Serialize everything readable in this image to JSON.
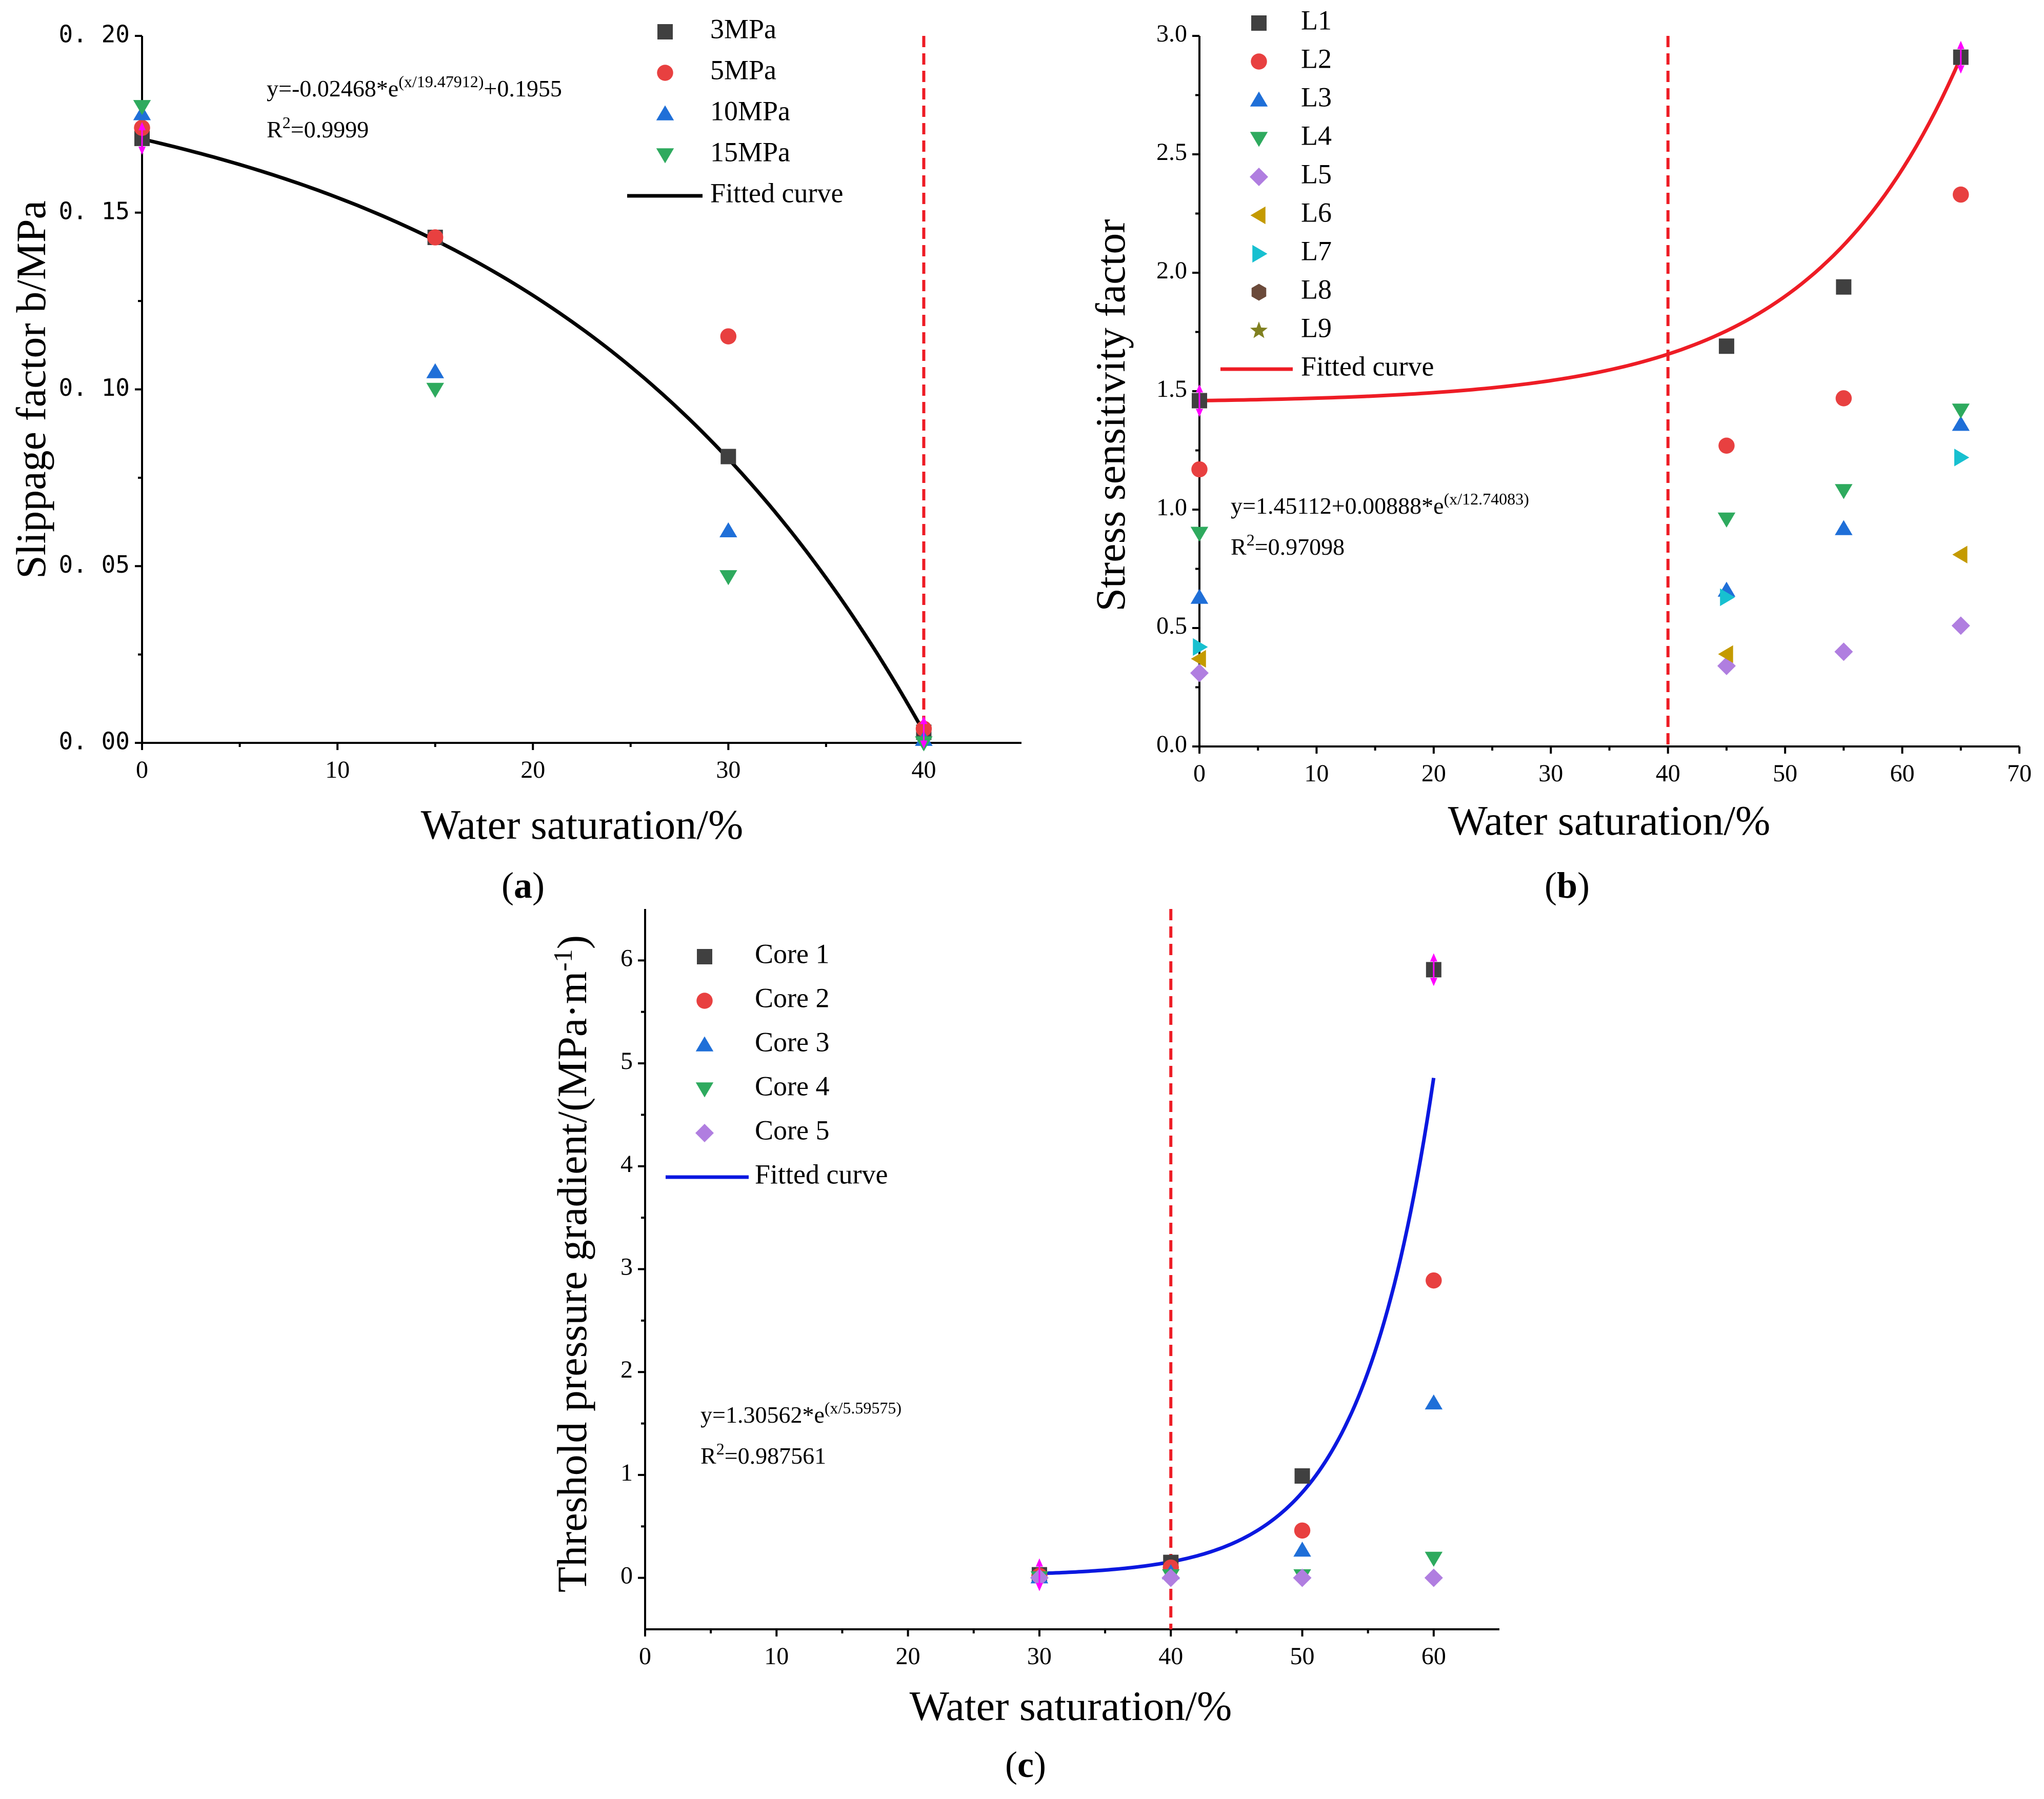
{
  "chart_data": [
    {
      "id": "a",
      "type": "scatter",
      "panel_label": "a",
      "xlabel": "Water saturation/%",
      "ylabel": "Slippage factor b/MPa",
      "xlim": [
        0,
        45
      ],
      "ylim": [
        0,
        0.2
      ],
      "xticks": [
        "0",
        "10",
        "20",
        "30",
        "40"
      ],
      "yticks": [
        "0. 00",
        "0. 05",
        "0. 10",
        "0. 15",
        "0. 20"
      ],
      "vline_x": 40,
      "series": [
        {
          "name": "3MPa",
          "marker": "square",
          "color": "#404040",
          "points": [
            [
              0,
              0.171
            ],
            [
              15,
              0.143
            ],
            [
              30,
              0.081
            ],
            [
              40,
              0.003
            ]
          ]
        },
        {
          "name": "5MPa",
          "marker": "circle",
          "color": "#e84040",
          "points": [
            [
              0,
              0.174
            ],
            [
              15,
              0.143
            ],
            [
              30,
              0.115
            ],
            [
              40,
              0.004
            ]
          ]
        },
        {
          "name": "10MPa",
          "marker": "triangle-up",
          "color": "#1f6fd8",
          "points": [
            [
              0,
              0.178
            ],
            [
              15,
              0.105
            ],
            [
              30,
              0.06
            ],
            [
              40,
              0.001
            ]
          ]
        },
        {
          "name": "15MPa",
          "marker": "triangle-down",
          "color": "#2eaa5e",
          "points": [
            [
              0,
              0.18
            ],
            [
              15,
              0.1
            ],
            [
              30,
              0.047
            ],
            [
              40,
              0.0
            ]
          ]
        }
      ],
      "fit": {
        "name": "Fitted curve",
        "color": "#000000",
        "model": "a_plus_b_exp",
        "a": 0.1955,
        "b": -0.02468,
        "t": 19.47912,
        "xrange": [
          0,
          40
        ]
      },
      "equation_prefix": "y=-0.02468*e",
      "equation_exp": "(x/19.47912)",
      "equation_suffix": "+0.1955",
      "r2_prefix": "R",
      "r2_sup": "2",
      "r2_value": "=0.9999"
    },
    {
      "id": "b",
      "type": "scatter",
      "panel_label": "b",
      "xlabel": "Water saturation/%",
      "ylabel": "Stress sensitivity factor",
      "xlim": [
        0,
        70
      ],
      "ylim": [
        0,
        3.0
      ],
      "xticks": [
        "0",
        "10",
        "20",
        "30",
        "40",
        "50",
        "60",
        "70"
      ],
      "yticks": [
        "0.0",
        "0.5",
        "1.0",
        "1.5",
        "2.0",
        "2.5",
        "3.0"
      ],
      "vline_x": 40,
      "series": [
        {
          "name": "L1",
          "marker": "square",
          "color": "#404040",
          "points": [
            [
              0,
              1.46
            ],
            [
              45,
              1.69
            ],
            [
              55,
              1.94
            ],
            [
              65,
              2.91
            ]
          ]
        },
        {
          "name": "L2",
          "marker": "circle",
          "color": "#e84040",
          "points": [
            [
              0,
              1.17
            ],
            [
              45,
              1.27
            ],
            [
              55,
              1.47
            ],
            [
              65,
              2.33
            ]
          ]
        },
        {
          "name": "L3",
          "marker": "triangle-up",
          "color": "#1f6fd8",
          "points": [
            [
              0,
              0.63
            ],
            [
              45,
              0.66
            ],
            [
              55,
              0.92
            ],
            [
              65,
              1.36
            ]
          ]
        },
        {
          "name": "L4",
          "marker": "triangle-down",
          "color": "#2eaa5e",
          "points": [
            [
              0,
              0.9
            ],
            [
              45,
              0.96
            ],
            [
              55,
              1.08
            ],
            [
              65,
              1.42
            ]
          ]
        },
        {
          "name": "L5",
          "marker": "diamond",
          "color": "#b07ee0",
          "points": [
            [
              0,
              0.31
            ],
            [
              45,
              0.34
            ],
            [
              55,
              0.4
            ],
            [
              65,
              0.51
            ]
          ]
        },
        {
          "name": "L6",
          "marker": "triangle-left",
          "color": "#c49a00",
          "points": [
            [
              0,
              0.37
            ],
            [
              45,
              0.39
            ],
            [
              65,
              0.81
            ]
          ]
        },
        {
          "name": "L7",
          "marker": "triangle-right",
          "color": "#17c0d0",
          "points": [
            [
              0,
              0.42
            ],
            [
              45,
              0.63
            ],
            [
              65,
              1.22
            ]
          ]
        },
        {
          "name": "L8",
          "marker": "hexagon",
          "color": "#6b4a3a",
          "points": []
        },
        {
          "name": "L9",
          "marker": "star",
          "color": "#808020",
          "points": []
        }
      ],
      "fit": {
        "name": "Fitted curve",
        "color": "#ee1c25",
        "model": "a_plus_b_exp",
        "a": 1.45112,
        "b": 0.00888,
        "t": 12.74083,
        "xrange": [
          0,
          65
        ]
      },
      "equation_prefix": "y=1.45112+0.00888*e",
      "equation_exp": "(x/12.74083)",
      "equation_suffix": "",
      "r2_prefix": "R",
      "r2_sup": "2",
      "r2_value": "=0.97098"
    },
    {
      "id": "c",
      "type": "scatter",
      "panel_label": "c",
      "xlabel": "Water saturation/%",
      "ylabel": "Threshold pressure gradient/(MPa·m",
      "ylabel_sup": "-1",
      "ylabel_close": ")",
      "xlim": [
        0,
        65
      ],
      "ylim": [
        -0.5,
        6.5
      ],
      "xticks": [
        "0",
        "10",
        "20",
        "30",
        "40",
        "50",
        "60"
      ],
      "yticks": [
        "0",
        "1",
        "2",
        "3",
        "4",
        "5",
        "6"
      ],
      "vline_x": 40,
      "series": [
        {
          "name": "Core 1",
          "marker": "square",
          "color": "#404040",
          "points": [
            [
              30,
              0.03
            ],
            [
              40,
              0.15
            ],
            [
              50,
              0.99
            ],
            [
              60,
              5.91
            ]
          ]
        },
        {
          "name": "Core 2",
          "marker": "circle",
          "color": "#e84040",
          "points": [
            [
              30,
              0.02
            ],
            [
              40,
              0.1
            ],
            [
              50,
              0.46
            ],
            [
              60,
              2.89
            ]
          ]
        },
        {
          "name": "Core 3",
          "marker": "triangle-up",
          "color": "#1f6fd8",
          "points": [
            [
              30,
              0.01
            ],
            [
              40,
              0.05
            ],
            [
              50,
              0.27
            ],
            [
              60,
              1.7
            ]
          ]
        },
        {
          "name": "Core 4",
          "marker": "triangle-down",
          "color": "#2eaa5e",
          "points": [
            [
              30,
              0.0
            ],
            [
              40,
              0.02
            ],
            [
              50,
              0.02
            ],
            [
              60,
              0.19
            ]
          ]
        },
        {
          "name": "Core 5",
          "marker": "diamond",
          "color": "#b07ee0",
          "points": [
            [
              30,
              0.0
            ],
            [
              40,
              0.0
            ],
            [
              50,
              0.0
            ],
            [
              60,
              0.0
            ]
          ]
        }
      ],
      "fit": {
        "name": "Fitted curve",
        "color": "#0a18e0",
        "model": "b_exp_minus_x",
        "b": 1.30562,
        "t": 5.59575,
        "x_shift": 52.67,
        "xrange": [
          30,
          60
        ]
      },
      "equation_prefix": "y=1.30562*e",
      "equation_exp": "(x/5.59575)",
      "equation_suffix": "",
      "r2_prefix": "R",
      "r2_sup": "2",
      "r2_value": "=0.987561"
    }
  ]
}
